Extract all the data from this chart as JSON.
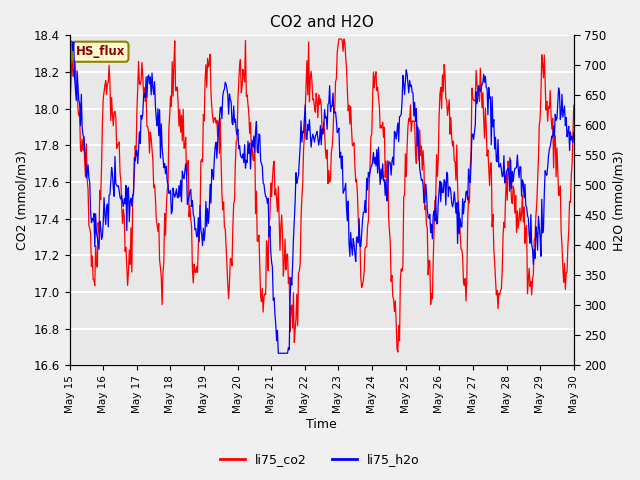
{
  "title": "CO2 and H2O",
  "xlabel": "Time",
  "ylabel_left": "CO2 (mmol/m3)",
  "ylabel_right": "H2O (mmol/m3)",
  "legend_label1": "li75_co2",
  "legend_label2": "li75_h2o",
  "site_label": "HS_flux",
  "co2_ylim": [
    16.6,
    18.4
  ],
  "h2o_ylim": [
    200,
    750
  ],
  "co2_yticks": [
    16.6,
    16.8,
    17.0,
    17.2,
    17.4,
    17.6,
    17.8,
    18.0,
    18.2,
    18.4
  ],
  "h2o_yticks": [
    200,
    250,
    300,
    350,
    400,
    450,
    500,
    550,
    600,
    650,
    700,
    750
  ],
  "color_co2": "#FF0000",
  "color_h2o": "#0000FF",
  "background_color": "#E8E8E8",
  "grid_color": "#FFFFFF",
  "n_days": 15,
  "xtick_labels": [
    "May 15",
    "May 16",
    "May 17",
    "May 18",
    "May 19",
    "May 20",
    "May 21",
    "May 22",
    "May 23",
    "May 24",
    "May 25",
    "May 26",
    "May 27",
    "May 28",
    "May 29",
    "May 30"
  ],
  "seed": 42
}
